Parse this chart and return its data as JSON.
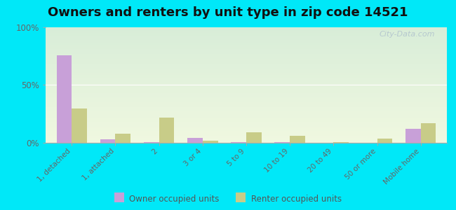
{
  "title": "Owners and renters by unit type in zip code 14521",
  "categories": [
    "1, detached",
    "1, attached",
    "2",
    "3 or 4",
    "5 to 9",
    "10 to 19",
    "20 to 49",
    "50 or more",
    "Mobile home"
  ],
  "owner_values": [
    76,
    3,
    0.5,
    4,
    0.5,
    0.5,
    0.3,
    0.2,
    12
  ],
  "renter_values": [
    30,
    8,
    22,
    2,
    9,
    6,
    0.5,
    3.5,
    17
  ],
  "owner_color": "#c8a0d8",
  "renter_color": "#c8cc88",
  "background_color": "#00e8f8",
  "ylim": [
    0,
    100
  ],
  "yticks": [
    0,
    50,
    100
  ],
  "ytick_labels": [
    "0%",
    "50%",
    "100%"
  ],
  "watermark": "City-Data.com",
  "legend_owner": "Owner occupied units",
  "legend_renter": "Renter occupied units",
  "title_fontsize": 13,
  "bar_width": 0.35,
  "grad_top": "#d8edd8",
  "grad_bottom": "#f0f8e0"
}
